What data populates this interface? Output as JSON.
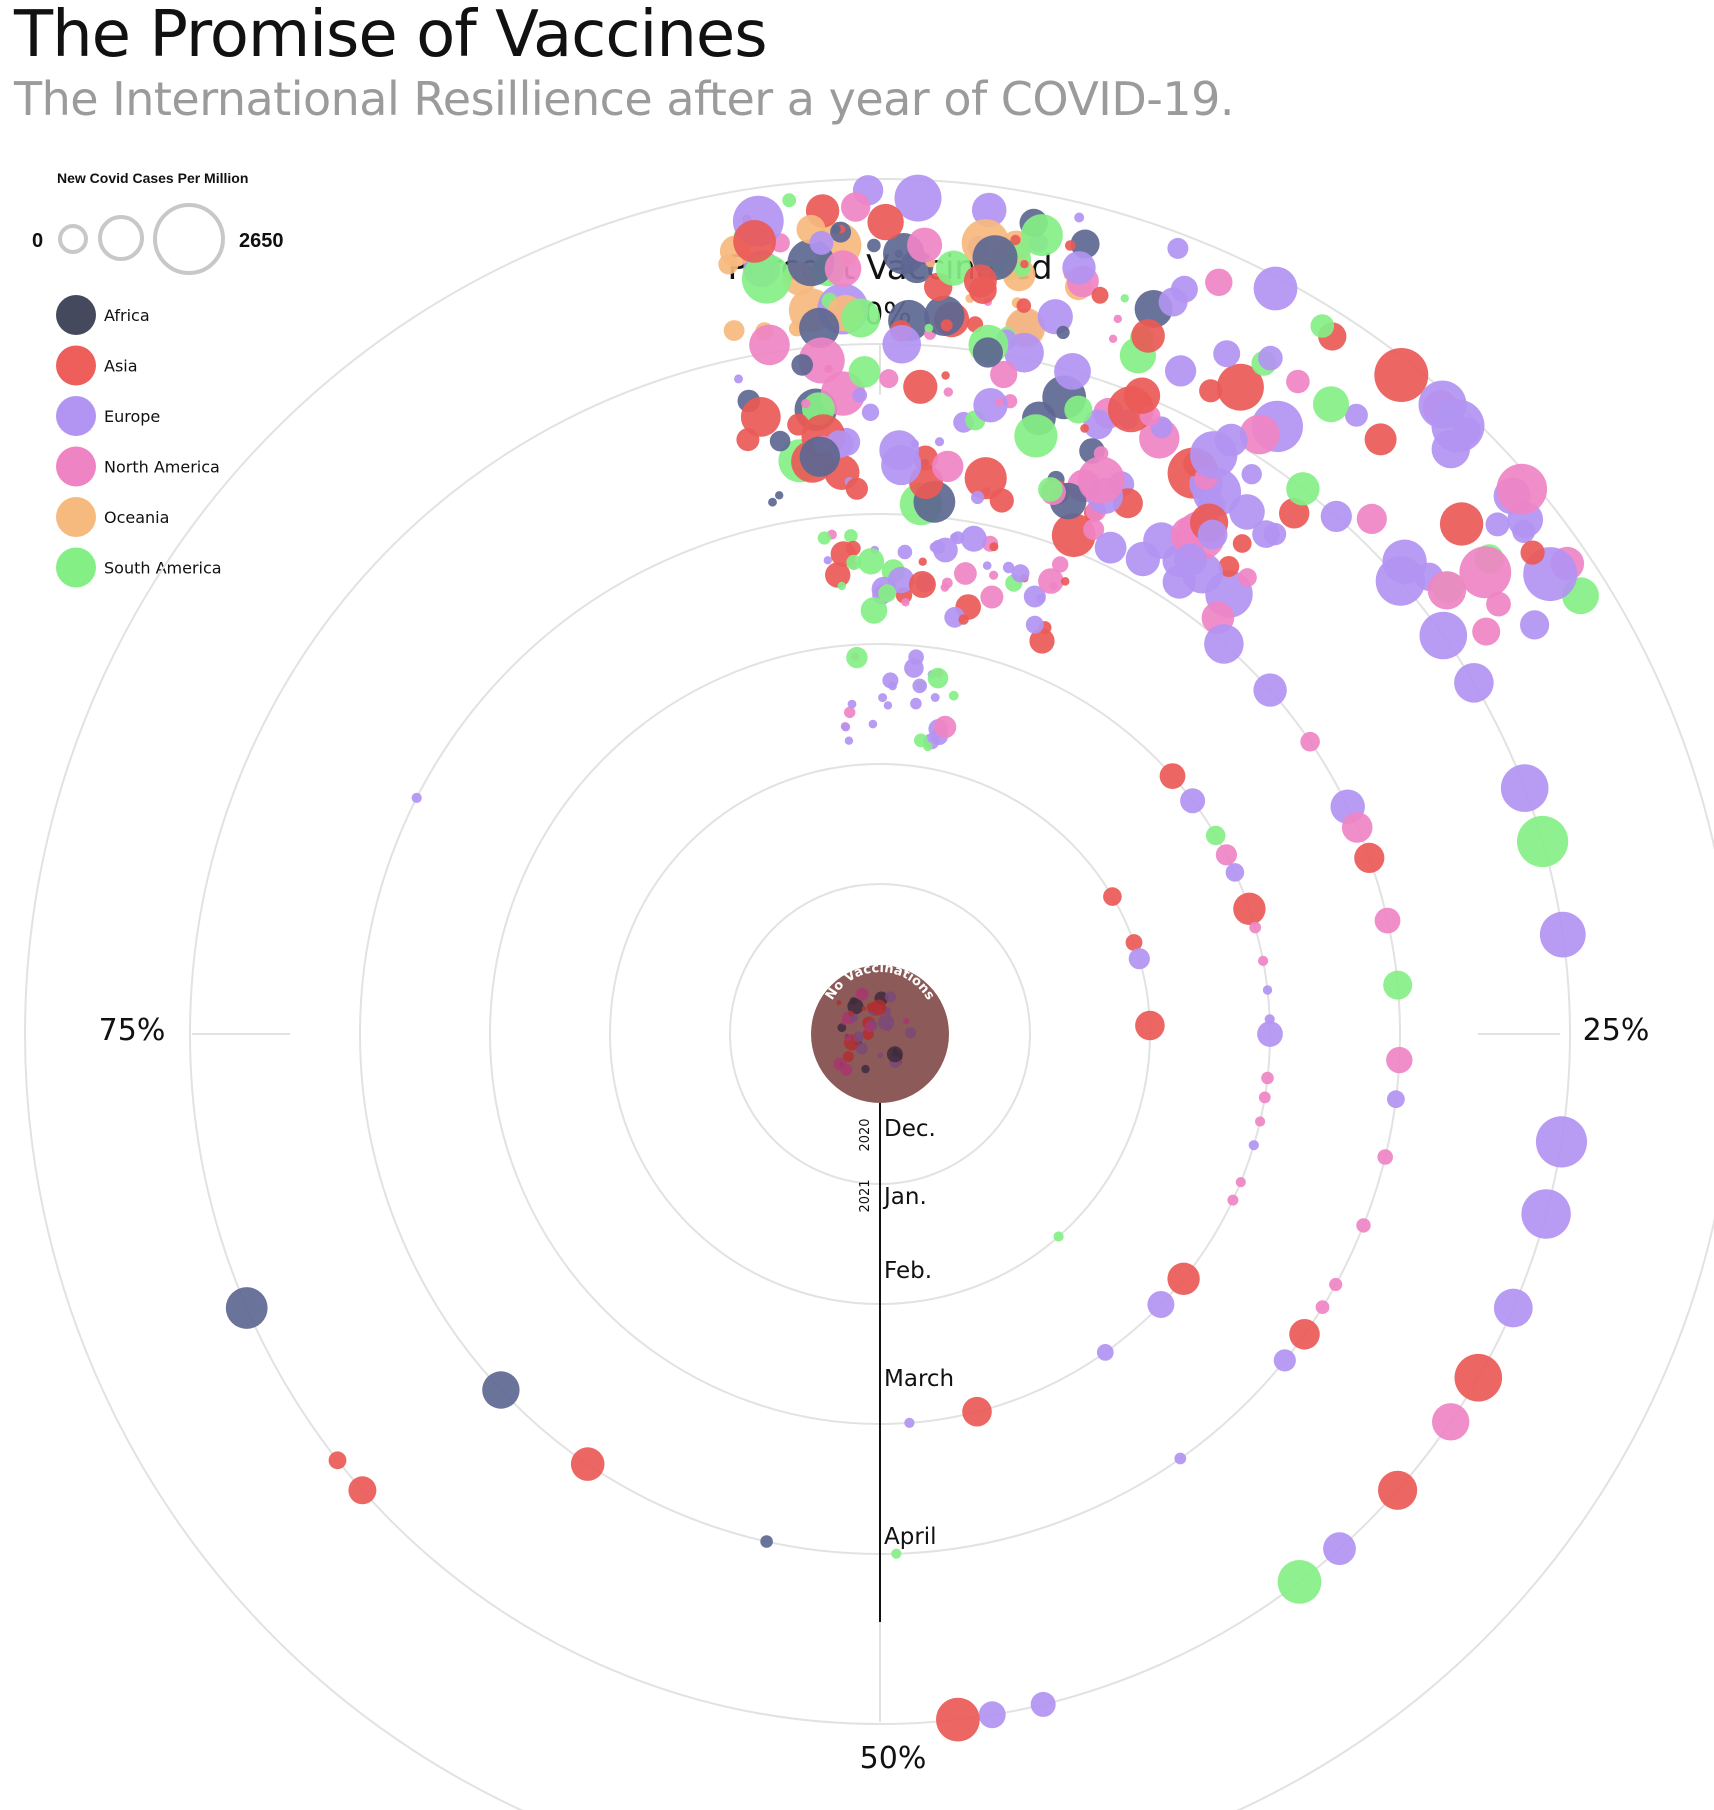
{
  "title": "The Promise of Vaccines",
  "subtitle": "The International Resillience after a year of COVID-19.",
  "chart_data": {
    "type": "scatter",
    "coordinate_system": "polar",
    "angle_axis": {
      "label": "Percent Vaccinated",
      "ticks": [
        "0%",
        "25%",
        "50%",
        "75%"
      ],
      "tick_values": [
        0,
        25,
        50,
        75
      ],
      "range": [
        0,
        100
      ]
    },
    "radial_axis": {
      "months": [
        {
          "label": "Dec.",
          "year": "2020",
          "ring": 1
        },
        {
          "label": "Jan.",
          "year": "2021",
          "ring": 2
        },
        {
          "label": "Feb.",
          "year": "",
          "ring": 3
        },
        {
          "label": "March",
          "year": "",
          "ring": 4
        },
        {
          "label": "April",
          "year": "",
          "ring": 5
        }
      ]
    },
    "center_label": "No Vaccinations",
    "size_legend": {
      "title": "New Covid Cases Per Million",
      "min_label": "0",
      "max_label": "2650",
      "min": 0,
      "max": 2650
    },
    "legend": {
      "placement": "top-left",
      "items": [
        {
          "name": "Africa",
          "color": "#44495e"
        },
        {
          "name": "Asia",
          "color": "#ee5f5b"
        },
        {
          "name": "Europe",
          "color": "#b294f2"
        },
        {
          "name": "North America",
          "color": "#ef84c4"
        },
        {
          "name": "Oceania",
          "color": "#f6b97e"
        },
        {
          "name": "South America",
          "color": "#84ef84"
        }
      ]
    },
    "colors": {
      "Africa": "#5d6791",
      "Asia": "#ea5a56",
      "Europe": "#b294f2",
      "North America": "#ef84c4",
      "Oceania": "#f6b97e",
      "South America": "#84ef84"
    },
    "points": [
      {
        "ring": 5,
        "pct": 0.5,
        "cases": 850,
        "region": "Europe"
      },
      {
        "ring": 5,
        "pct": 2.5,
        "cases": 520,
        "region": "Africa"
      },
      {
        "ring": 5,
        "pct": 4.5,
        "cases": 780,
        "region": "Europe"
      },
      {
        "ring": 5,
        "pct": 6.2,
        "cases": 760,
        "region": "Asia"
      },
      {
        "ring": 5,
        "pct": 8.5,
        "cases": 620,
        "region": "Europe"
      },
      {
        "ring": 5,
        "pct": 10.5,
        "cases": 640,
        "region": "South America"
      },
      {
        "ring": 5,
        "pct": 11.5,
        "cases": 560,
        "region": "Europe"
      },
      {
        "ring": 5,
        "pct": 13.6,
        "cases": 1400,
        "region": "Europe"
      },
      {
        "ring": 5,
        "pct": 15.2,
        "cases": 1300,
        "region": "Europe"
      },
      {
        "ring": 5,
        "pct": 16.5,
        "cases": 900,
        "region": "Europe"
      },
      {
        "ring": 5,
        "pct": 19.2,
        "cases": 1300,
        "region": "Europe"
      },
      {
        "ring": 5,
        "pct": 20.5,
        "cases": 1500,
        "region": "South America"
      },
      {
        "ring": 5,
        "pct": 22.7,
        "cases": 1200,
        "region": "Europe"
      },
      {
        "ring": 5,
        "pct": 27.5,
        "cases": 1500,
        "region": "Europe"
      },
      {
        "ring": 5,
        "pct": 29.2,
        "cases": 1400,
        "region": "Europe"
      },
      {
        "ring": 5,
        "pct": 31.5,
        "cases": 860,
        "region": "Europe"
      },
      {
        "ring": 5,
        "pct": 33.3,
        "cases": 1300,
        "region": "Asia"
      },
      {
        "ring": 5,
        "pct": 34.5,
        "cases": 800,
        "region": "North America"
      },
      {
        "ring": 5,
        "pct": 36.5,
        "cases": 880,
        "region": "Asia"
      },
      {
        "ring": 5,
        "pct": 38.4,
        "cases": 620,
        "region": "Europe"
      },
      {
        "ring": 5,
        "pct": 39.6,
        "cases": 1100,
        "region": "South America"
      },
      {
        "ring": 5,
        "pct": 46.2,
        "cases": 360,
        "region": "Europe"
      },
      {
        "ring": 5,
        "pct": 47.4,
        "cases": 420,
        "region": "Europe"
      },
      {
        "ring": 5,
        "pct": 48.2,
        "cases": 1100,
        "region": "Asia"
      },
      {
        "ring": 5,
        "pct": 63.5,
        "cases": 450,
        "region": "Asia"
      },
      {
        "ring": 5,
        "pct": 64.4,
        "cases": 180,
        "region": "Asia"
      },
      {
        "ring": 5,
        "pct": 68.5,
        "cases": 1000,
        "region": "Africa"
      },
      {
        "ring": 4,
        "pct": 11.5,
        "cases": 900,
        "region": "Europe"
      },
      {
        "ring": 4,
        "pct": 13.5,
        "cases": 640,
        "region": "Europe"
      },
      {
        "ring": 4,
        "pct": 15.5,
        "cases": 220,
        "region": "North America"
      },
      {
        "ring": 4,
        "pct": 17.8,
        "cases": 680,
        "region": "Europe"
      },
      {
        "ring": 4,
        "pct": 18.5,
        "cases": 540,
        "region": "North America"
      },
      {
        "ring": 4,
        "pct": 19.5,
        "cases": 520,
        "region": "Asia"
      },
      {
        "ring": 4,
        "pct": 21.5,
        "cases": 380,
        "region": "North America"
      },
      {
        "ring": 4,
        "pct": 23.5,
        "cases": 480,
        "region": "South America"
      },
      {
        "ring": 4,
        "pct": 25.8,
        "cases": 400,
        "region": "North America"
      },
      {
        "ring": 4,
        "pct": 27.0,
        "cases": 180,
        "region": "Europe"
      },
      {
        "ring": 4,
        "pct": 28.8,
        "cases": 140,
        "region": "North America"
      },
      {
        "ring": 4,
        "pct": 31.0,
        "cases": 120,
        "region": "North America"
      },
      {
        "ring": 4,
        "pct": 33.0,
        "cases": 100,
        "region": "North America"
      },
      {
        "ring": 4,
        "pct": 33.8,
        "cases": 110,
        "region": "North America"
      },
      {
        "ring": 4,
        "pct": 34.8,
        "cases": 540,
        "region": "Asia"
      },
      {
        "ring": 4,
        "pct": 35.8,
        "cases": 280,
        "region": "Europe"
      },
      {
        "ring": 4,
        "pct": 40.2,
        "cases": 80,
        "region": "Europe"
      },
      {
        "ring": 4,
        "pct": 49.5,
        "cases": 60,
        "region": "South America"
      },
      {
        "ring": 4,
        "pct": 53.5,
        "cases": 90,
        "region": "Africa"
      },
      {
        "ring": 4,
        "pct": 59.5,
        "cases": 650,
        "region": "Asia"
      },
      {
        "ring": 4,
        "pct": 63.0,
        "cases": 800,
        "region": "Africa"
      },
      {
        "ring": 4,
        "pct": 82.5,
        "cases": 60,
        "region": "Europe"
      },
      {
        "ring": 3,
        "pct": 13.5,
        "cases": 380,
        "region": "Asia"
      },
      {
        "ring": 3,
        "pct": 14.8,
        "cases": 360,
        "region": "Europe"
      },
      {
        "ring": 3,
        "pct": 16.5,
        "cases": 220,
        "region": "South America"
      },
      {
        "ring": 3,
        "pct": 17.4,
        "cases": 260,
        "region": "North America"
      },
      {
        "ring": 3,
        "pct": 18.2,
        "cases": 200,
        "region": "Europe"
      },
      {
        "ring": 3,
        "pct": 19.8,
        "cases": 600,
        "region": "Asia"
      },
      {
        "ring": 3,
        "pct": 20.6,
        "cases": 80,
        "region": "North America"
      },
      {
        "ring": 3,
        "pct": 22.0,
        "cases": 60,
        "region": "North America"
      },
      {
        "ring": 3,
        "pct": 23.2,
        "cases": 50,
        "region": "Europe"
      },
      {
        "ring": 3,
        "pct": 24.4,
        "cases": 60,
        "region": "Europe"
      },
      {
        "ring": 3,
        "pct": 25.0,
        "cases": 380,
        "region": "Europe"
      },
      {
        "ring": 3,
        "pct": 26.8,
        "cases": 90,
        "region": "North America"
      },
      {
        "ring": 3,
        "pct": 27.6,
        "cases": 80,
        "region": "North America"
      },
      {
        "ring": 3,
        "pct": 28.6,
        "cases": 60,
        "region": "North America"
      },
      {
        "ring": 3,
        "pct": 29.6,
        "cases": 60,
        "region": "Europe"
      },
      {
        "ring": 3,
        "pct": 31.2,
        "cases": 60,
        "region": "North America"
      },
      {
        "ring": 3,
        "pct": 32.0,
        "cases": 70,
        "region": "North America"
      },
      {
        "ring": 3,
        "pct": 35.8,
        "cases": 600,
        "region": "Asia"
      },
      {
        "ring": 3,
        "pct": 37.2,
        "cases": 420,
        "region": "Europe"
      },
      {
        "ring": 3,
        "pct": 40.2,
        "cases": 160,
        "region": "Europe"
      },
      {
        "ring": 3,
        "pct": 46.0,
        "cases": 500,
        "region": "Asia"
      },
      {
        "ring": 3,
        "pct": 48.8,
        "cases": 60,
        "region": "Europe"
      },
      {
        "ring": 2,
        "pct": 16.5,
        "cases": 200,
        "region": "Asia"
      },
      {
        "ring": 2,
        "pct": 19.5,
        "cases": 160,
        "region": "Asia"
      },
      {
        "ring": 2,
        "pct": 20.5,
        "cases": 260,
        "region": "Europe"
      },
      {
        "ring": 2,
        "pct": 24.5,
        "cases": 500,
        "region": "Asia"
      },
      {
        "ring": 2,
        "pct": 38.5,
        "cases": 60,
        "region": "South America"
      }
    ],
    "clusters": [
      {
        "ring": 6,
        "pct_range": [
          -3.5,
          6.0
        ],
        "count": 95,
        "regions": [
          "Asia",
          "Africa",
          "Europe",
          "North America",
          "South America",
          "Oceania"
        ],
        "size_range": [
          40,
          1500
        ]
      },
      {
        "ring": 6,
        "pct_range": [
          6.0,
          16.5
        ],
        "count": 45,
        "regions": [
          "Europe",
          "Europe",
          "Europe",
          "Asia",
          "South America",
          "North America"
        ],
        "size_range": [
          300,
          1800
        ]
      },
      {
        "ring": 5,
        "pct_range": [
          -3.5,
          6.0
        ],
        "count": 70,
        "regions": [
          "Asia",
          "Africa",
          "Europe",
          "North America",
          "South America"
        ],
        "size_range": [
          40,
          1300
        ]
      },
      {
        "ring": 5,
        "pct_range": [
          6.0,
          11.0
        ],
        "count": 40,
        "regions": [
          "Europe",
          "Europe",
          "Europe",
          "Asia",
          "North America"
        ],
        "size_range": [
          200,
          1500
        ]
      },
      {
        "ring": 4,
        "pct_range": [
          -2.5,
          6.5
        ],
        "count": 55,
        "regions": [
          "Europe",
          "Europe",
          "Asia",
          "South America",
          "North America"
        ],
        "size_range": [
          40,
          450
        ]
      },
      {
        "ring": 3,
        "pct_range": [
          -2.0,
          3.5
        ],
        "count": 28,
        "regions": [
          "Europe",
          "Europe",
          "North America",
          "South America"
        ],
        "size_range": [
          40,
          300
        ]
      },
      {
        "ring": 0,
        "pct_range": [
          0,
          100
        ],
        "count": 42,
        "regions": [
          "Asia",
          "Africa",
          "Europe",
          "North America"
        ],
        "size_range": [
          40,
          500
        ]
      }
    ]
  }
}
